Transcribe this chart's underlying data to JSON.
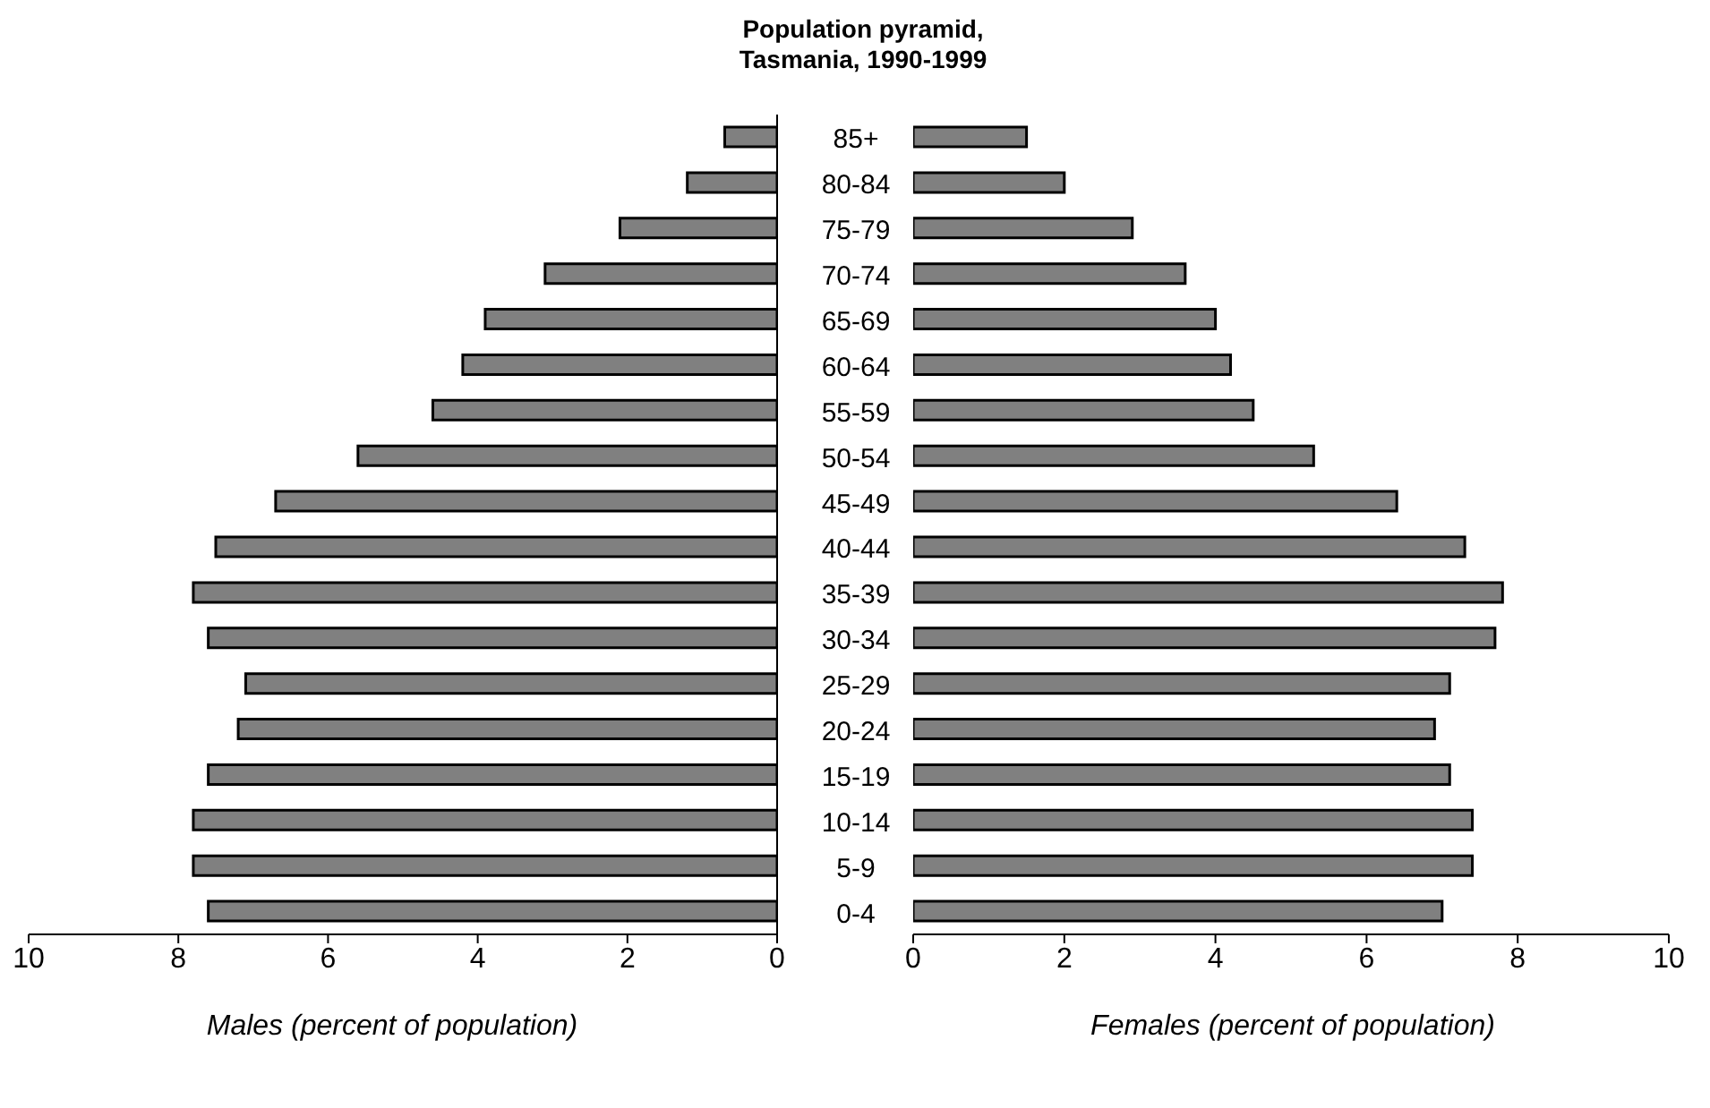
{
  "chart_data": [
    {
      "type": "bar",
      "orientation": "horizontal",
      "title": "Population pyramid, Tasmania, 1990-1999",
      "xlabel": "Males (percent of population)",
      "categories": [
        "85+",
        "80-84",
        "75-79",
        "70-74",
        "65-69",
        "60-64",
        "55-59",
        "50-54",
        "45-49",
        "40-44",
        "35-39",
        "30-34",
        "25-29",
        "20-24",
        "15-19",
        "10-14",
        "5-9",
        "0-4"
      ],
      "series": [
        {
          "color": "#808080",
          "values": [
            0.7,
            1.2,
            2.1,
            3.1,
            3.9,
            4.2,
            4.6,
            5.6,
            6.7,
            7.5,
            7.8,
            7.6,
            7.1,
            7.2,
            7.6,
            7.8,
            7.8,
            7.6
          ]
        }
      ],
      "xlim": [
        10,
        0
      ],
      "xticks": [
        10,
        8,
        6,
        4,
        2,
        0
      ],
      "grid": false,
      "legend": false
    },
    {
      "type": "bar",
      "orientation": "horizontal",
      "xlabel": "Females (percent of population)",
      "series": [
        {
          "color": "#808080",
          "values": [
            1.5,
            2.0,
            2.9,
            3.6,
            4.0,
            4.2,
            4.5,
            5.3,
            6.4,
            7.3,
            7.8,
            7.7,
            7.1,
            6.9,
            7.1,
            7.4,
            7.4,
            7.0
          ]
        }
      ],
      "xlim": [
        0,
        10
      ],
      "xticks": [
        0,
        2,
        4,
        6,
        8,
        10
      ],
      "grid": false,
      "legend": false,
      "tick_labels": "x"
    }
  ]
}
